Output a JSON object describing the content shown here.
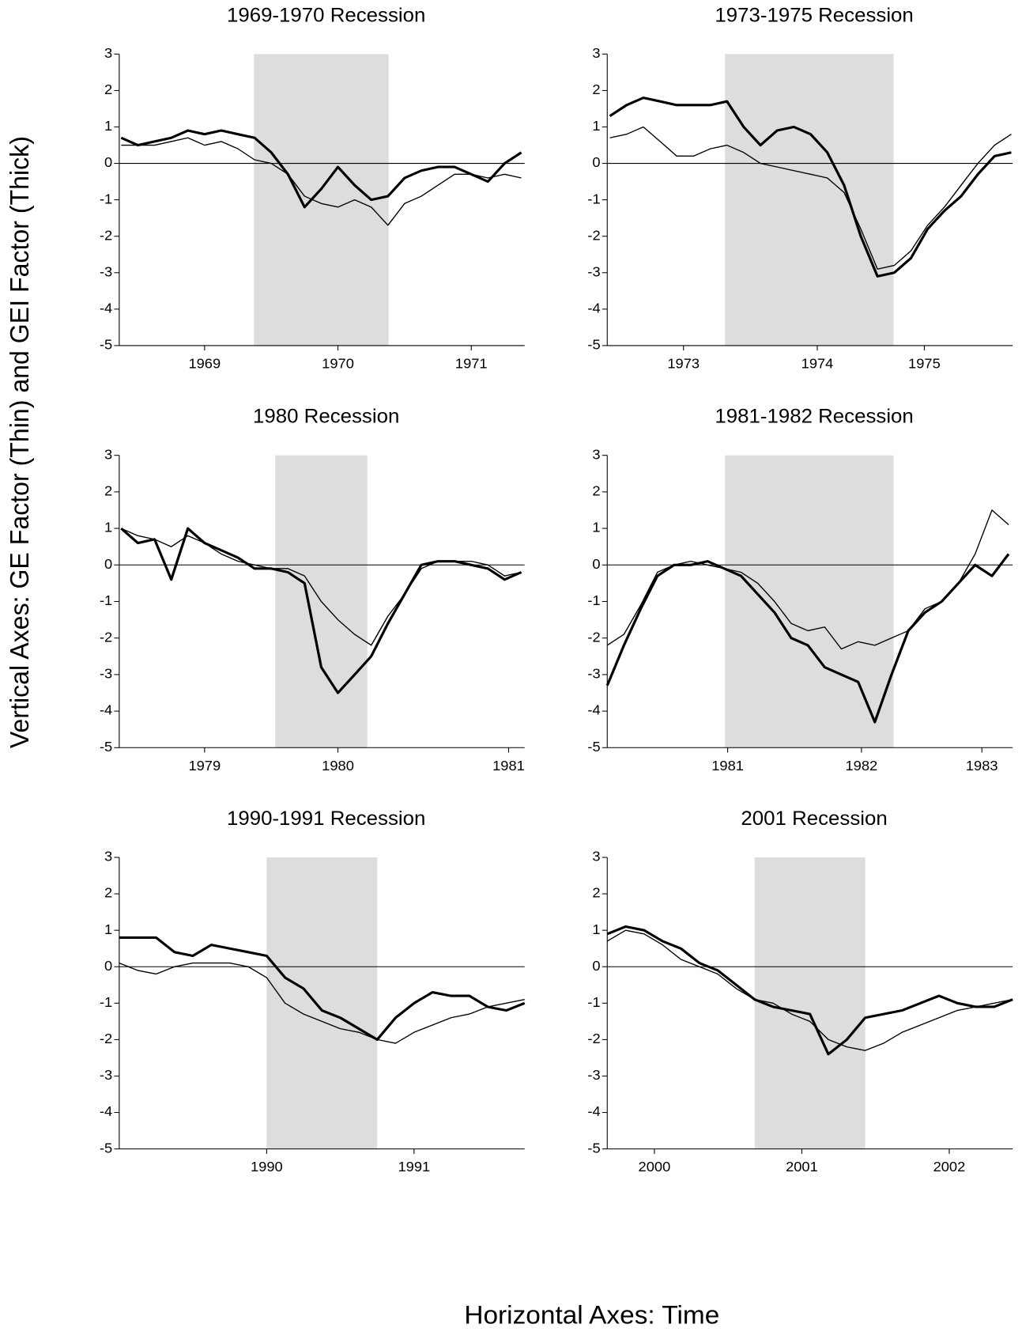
{
  "ylabel": "Vertical Axes:  GE Factor (Thin) and GEI Factor (Thick)",
  "xlabel": "Horizontal Axes:  Time",
  "chart_data": [
    {
      "type": "line",
      "title": "1969-1970 Recession",
      "xlim": [
        1968.86,
        1971.9
      ],
      "ylim": [
        -5,
        3
      ],
      "yticks": [
        -5,
        -4,
        -3,
        -2,
        -1,
        0,
        1,
        2,
        3
      ],
      "xticks": [
        {
          "value": 1969.5,
          "label": "1969"
        },
        {
          "value": 1970.5,
          "label": "1970"
        },
        {
          "value": 1971.5,
          "label": "1971"
        }
      ],
      "shade": {
        "x": [
          1969.87,
          1970.88
        ],
        "color": "#dddddd"
      },
      "hline": 0,
      "x": [
        1968.875,
        1969.0,
        1969.125,
        1969.25,
        1969.375,
        1969.5,
        1969.625,
        1969.75,
        1969.875,
        1970.0,
        1970.125,
        1970.25,
        1970.375,
        1970.5,
        1970.625,
        1970.75,
        1970.875,
        1971.0,
        1971.125,
        1971.25,
        1971.375,
        1971.5,
        1971.625,
        1971.75,
        1971.875
      ],
      "series": [
        {
          "color": "#000000",
          "linewidth": 1.3,
          "values": [
            0.5,
            0.5,
            0.5,
            0.6,
            0.7,
            0.5,
            0.6,
            0.4,
            0.1,
            0.0,
            -0.3,
            -0.9,
            -1.1,
            -1.2,
            -1.0,
            -1.2,
            -1.7,
            -1.1,
            -0.9,
            -0.6,
            -0.3,
            -0.3,
            -0.4,
            -0.3,
            -0.4
          ]
        },
        {
          "color": "#000000",
          "linewidth": 3,
          "values": [
            0.7,
            0.5,
            0.6,
            0.7,
            0.9,
            0.8,
            0.9,
            0.8,
            0.7,
            0.3,
            -0.3,
            -1.2,
            -0.7,
            -0.1,
            -0.6,
            -1.0,
            -0.9,
            -0.4,
            -0.2,
            -0.1,
            -0.1,
            -0.3,
            -0.5,
            0.0,
            0.3
          ]
        }
      ]
    },
    {
      "type": "line",
      "title": "1973-1975 Recession",
      "xlim": [
        1972.93,
        1975.96
      ],
      "ylim": [
        -5,
        3
      ],
      "yticks": [
        -5,
        -4,
        -3,
        -2,
        -1,
        0,
        1,
        2,
        3
      ],
      "xticks": [
        {
          "value": 1973.5,
          "label": "1973"
        },
        {
          "value": 1974.5,
          "label": "1974"
        },
        {
          "value": 1975.3,
          "label": "1975"
        }
      ],
      "shade": {
        "x": [
          1973.81,
          1975.07
        ],
        "color": "#dddddd"
      },
      "hline": 0,
      "x": [
        1972.95,
        1973.075,
        1973.2,
        1973.325,
        1973.45,
        1973.575,
        1973.7,
        1973.825,
        1973.95,
        1974.075,
        1974.2,
        1974.325,
        1974.45,
        1974.575,
        1974.7,
        1974.825,
        1974.95,
        1975.075,
        1975.2,
        1975.325,
        1975.45,
        1975.575,
        1975.7,
        1975.825,
        1975.95
      ],
      "series": [
        {
          "color": "#000000",
          "linewidth": 1.3,
          "values": [
            0.7,
            0.8,
            1.0,
            0.6,
            0.2,
            0.2,
            0.4,
            0.5,
            0.3,
            0.0,
            -0.1,
            -0.2,
            -0.3,
            -0.4,
            -0.8,
            -1.8,
            -2.9,
            -2.8,
            -2.4,
            -1.7,
            -1.2,
            -0.6,
            0.0,
            0.5,
            0.8
          ]
        },
        {
          "color": "#000000",
          "linewidth": 3,
          "values": [
            1.3,
            1.6,
            1.8,
            1.7,
            1.6,
            1.6,
            1.6,
            1.7,
            1.0,
            0.5,
            0.9,
            1.0,
            0.8,
            0.3,
            -0.6,
            -2.0,
            -3.1,
            -3.0,
            -2.6,
            -1.8,
            -1.3,
            -0.9,
            -0.3,
            0.2,
            0.3
          ]
        }
      ]
    },
    {
      "type": "line",
      "title": "1980 Recession",
      "xlim": [
        1978.86,
        1981.9
      ],
      "ylim": [
        -5,
        3
      ],
      "yticks": [
        -5,
        -4,
        -3,
        -2,
        -1,
        0,
        1,
        2,
        3
      ],
      "xticks": [
        {
          "value": 1979.5,
          "label": "1979"
        },
        {
          "value": 1980.5,
          "label": "1980"
        },
        {
          "value": 1981.78,
          "label": "1981"
        }
      ],
      "shade": {
        "x": [
          1980.03,
          1980.72
        ],
        "color": "#dddddd"
      },
      "hline": 0,
      "x": [
        1978.875,
        1979.0,
        1979.125,
        1979.25,
        1979.375,
        1979.5,
        1979.625,
        1979.75,
        1979.875,
        1980.0,
        1980.125,
        1980.25,
        1980.375,
        1980.5,
        1980.625,
        1980.75,
        1980.875,
        1981.0,
        1981.125,
        1981.25,
        1981.375,
        1981.5,
        1981.625,
        1981.75,
        1981.875
      ],
      "series": [
        {
          "color": "#000000",
          "linewidth": 1.3,
          "values": [
            1.0,
            0.8,
            0.7,
            0.5,
            0.8,
            0.6,
            0.3,
            0.1,
            0.0,
            -0.1,
            -0.1,
            -0.3,
            -1.0,
            -1.5,
            -1.9,
            -2.2,
            -1.4,
            -0.8,
            -0.1,
            0.1,
            0.1,
            0.1,
            0.0,
            -0.3,
            -0.2
          ]
        },
        {
          "color": "#000000",
          "linewidth": 3,
          "values": [
            1.0,
            0.6,
            0.7,
            -0.4,
            1.0,
            0.6,
            0.4,
            0.2,
            -0.1,
            -0.1,
            -0.2,
            -0.5,
            -2.8,
            -3.5,
            -3.0,
            -2.5,
            -1.6,
            -0.8,
            0.0,
            0.1,
            0.1,
            0.0,
            -0.1,
            -0.4,
            -0.2
          ]
        }
      ]
    },
    {
      "type": "line",
      "title": "1981-1982 Recession",
      "xlim": [
        1980.6,
        1983.63
      ],
      "ylim": [
        -5,
        3
      ],
      "yticks": [
        -5,
        -4,
        -3,
        -2,
        -1,
        0,
        1,
        2,
        3
      ],
      "xticks": [
        {
          "value": 1981.5,
          "label": "1981"
        },
        {
          "value": 1982.5,
          "label": "1982"
        },
        {
          "value": 1983.4,
          "label": "1983"
        }
      ],
      "shade": {
        "x": [
          1981.48,
          1982.74
        ],
        "color": "#dddddd"
      },
      "hline": 0,
      "x": [
        1980.6,
        1980.725,
        1980.85,
        1980.975,
        1981.1,
        1981.225,
        1981.35,
        1981.475,
        1981.6,
        1981.725,
        1981.85,
        1981.975,
        1982.1,
        1982.225,
        1982.35,
        1982.475,
        1982.6,
        1982.725,
        1982.85,
        1982.975,
        1983.1,
        1983.225,
        1983.35,
        1983.475,
        1983.6
      ],
      "series": [
        {
          "color": "#000000",
          "linewidth": 1.3,
          "values": [
            -2.2,
            -1.9,
            -1.1,
            -0.2,
            0.0,
            0.1,
            0.0,
            -0.1,
            -0.2,
            -0.5,
            -1.0,
            -1.6,
            -1.8,
            -1.7,
            -2.3,
            -2.1,
            -2.2,
            -2.0,
            -1.8,
            -1.2,
            -1.0,
            -0.5,
            0.3,
            1.5,
            1.1
          ]
        },
        {
          "color": "#000000",
          "linewidth": 3,
          "values": [
            -3.3,
            -2.2,
            -1.2,
            -0.3,
            0.0,
            0.0,
            0.1,
            -0.1,
            -0.3,
            -0.8,
            -1.3,
            -2.0,
            -2.2,
            -2.8,
            -3.0,
            -3.2,
            -4.3,
            -3.0,
            -1.8,
            -1.3,
            -1.0,
            -0.5,
            0.0,
            -0.3,
            0.3
          ]
        }
      ]
    },
    {
      "type": "line",
      "title": "1990-1991 Recession",
      "xlim": [
        1989.5,
        1992.25
      ],
      "ylim": [
        -5,
        3
      ],
      "yticks": [
        -5,
        -4,
        -3,
        -2,
        -1,
        0,
        1,
        2,
        3
      ],
      "xticks": [
        {
          "value": 1990.5,
          "label": "1990"
        },
        {
          "value": 1991.5,
          "label": "1991"
        }
      ],
      "shade": {
        "x": [
          1990.5,
          1991.25
        ],
        "color": "#dddddd"
      },
      "hline": 0,
      "x": [
        1989.5,
        1989.625,
        1989.75,
        1989.875,
        1990.0,
        1990.125,
        1990.25,
        1990.375,
        1990.5,
        1990.625,
        1990.75,
        1990.875,
        1991.0,
        1991.125,
        1991.25,
        1991.375,
        1991.5,
        1991.625,
        1991.75,
        1991.875,
        1992.0,
        1992.125,
        1992.25
      ],
      "series": [
        {
          "color": "#000000",
          "linewidth": 1.3,
          "values": [
            0.1,
            -0.1,
            -0.2,
            0.0,
            0.1,
            0.1,
            0.1,
            0.0,
            -0.3,
            -1.0,
            -1.3,
            -1.5,
            -1.7,
            -1.8,
            -2.0,
            -2.1,
            -1.8,
            -1.6,
            -1.4,
            -1.3,
            -1.1,
            -1.0,
            -0.9
          ]
        },
        {
          "color": "#000000",
          "linewidth": 3,
          "values": [
            0.8,
            0.8,
            0.8,
            0.4,
            0.3,
            0.6,
            0.5,
            0.4,
            0.3,
            -0.3,
            -0.6,
            -1.2,
            -1.4,
            -1.7,
            -2.0,
            -1.4,
            -1.0,
            -0.7,
            -0.8,
            -0.8,
            -1.1,
            -1.2,
            -1.0
          ]
        }
      ]
    },
    {
      "type": "line",
      "title": "2001 Recession",
      "xlim": [
        2000.18,
        2002.93
      ],
      "ylim": [
        -5,
        3
      ],
      "yticks": [
        -5,
        -4,
        -3,
        -2,
        -1,
        0,
        1,
        2,
        3
      ],
      "xticks": [
        {
          "value": 2000.5,
          "label": "2000"
        },
        {
          "value": 2001.5,
          "label": "2001"
        },
        {
          "value": 2002.5,
          "label": "2002"
        }
      ],
      "shade": {
        "x": [
          2001.18,
          2001.93
        ],
        "color": "#dddddd"
      },
      "hline": 0,
      "x": [
        2000.18,
        2000.305,
        2000.43,
        2000.555,
        2000.68,
        2000.805,
        2000.93,
        2001.055,
        2001.18,
        2001.305,
        2001.43,
        2001.555,
        2001.68,
        2001.805,
        2001.93,
        2002.055,
        2002.18,
        2002.305,
        2002.43,
        2002.555,
        2002.68,
        2002.805,
        2002.93
      ],
      "series": [
        {
          "color": "#000000",
          "linewidth": 1.3,
          "values": [
            0.7,
            1.0,
            0.9,
            0.6,
            0.2,
            0.0,
            -0.2,
            -0.6,
            -0.9,
            -1.0,
            -1.3,
            -1.5,
            -2.0,
            -2.2,
            -2.3,
            -2.1,
            -1.8,
            -1.6,
            -1.4,
            -1.2,
            -1.1,
            -1.0,
            -0.9
          ]
        },
        {
          "color": "#000000",
          "linewidth": 3,
          "values": [
            0.9,
            1.1,
            1.0,
            0.7,
            0.5,
            0.1,
            -0.1,
            -0.5,
            -0.9,
            -1.1,
            -1.2,
            -1.3,
            -2.4,
            -2.0,
            -1.4,
            -1.3,
            -1.2,
            -1.0,
            -0.8,
            -1.0,
            -1.1,
            -1.1,
            -0.9
          ]
        }
      ]
    }
  ]
}
